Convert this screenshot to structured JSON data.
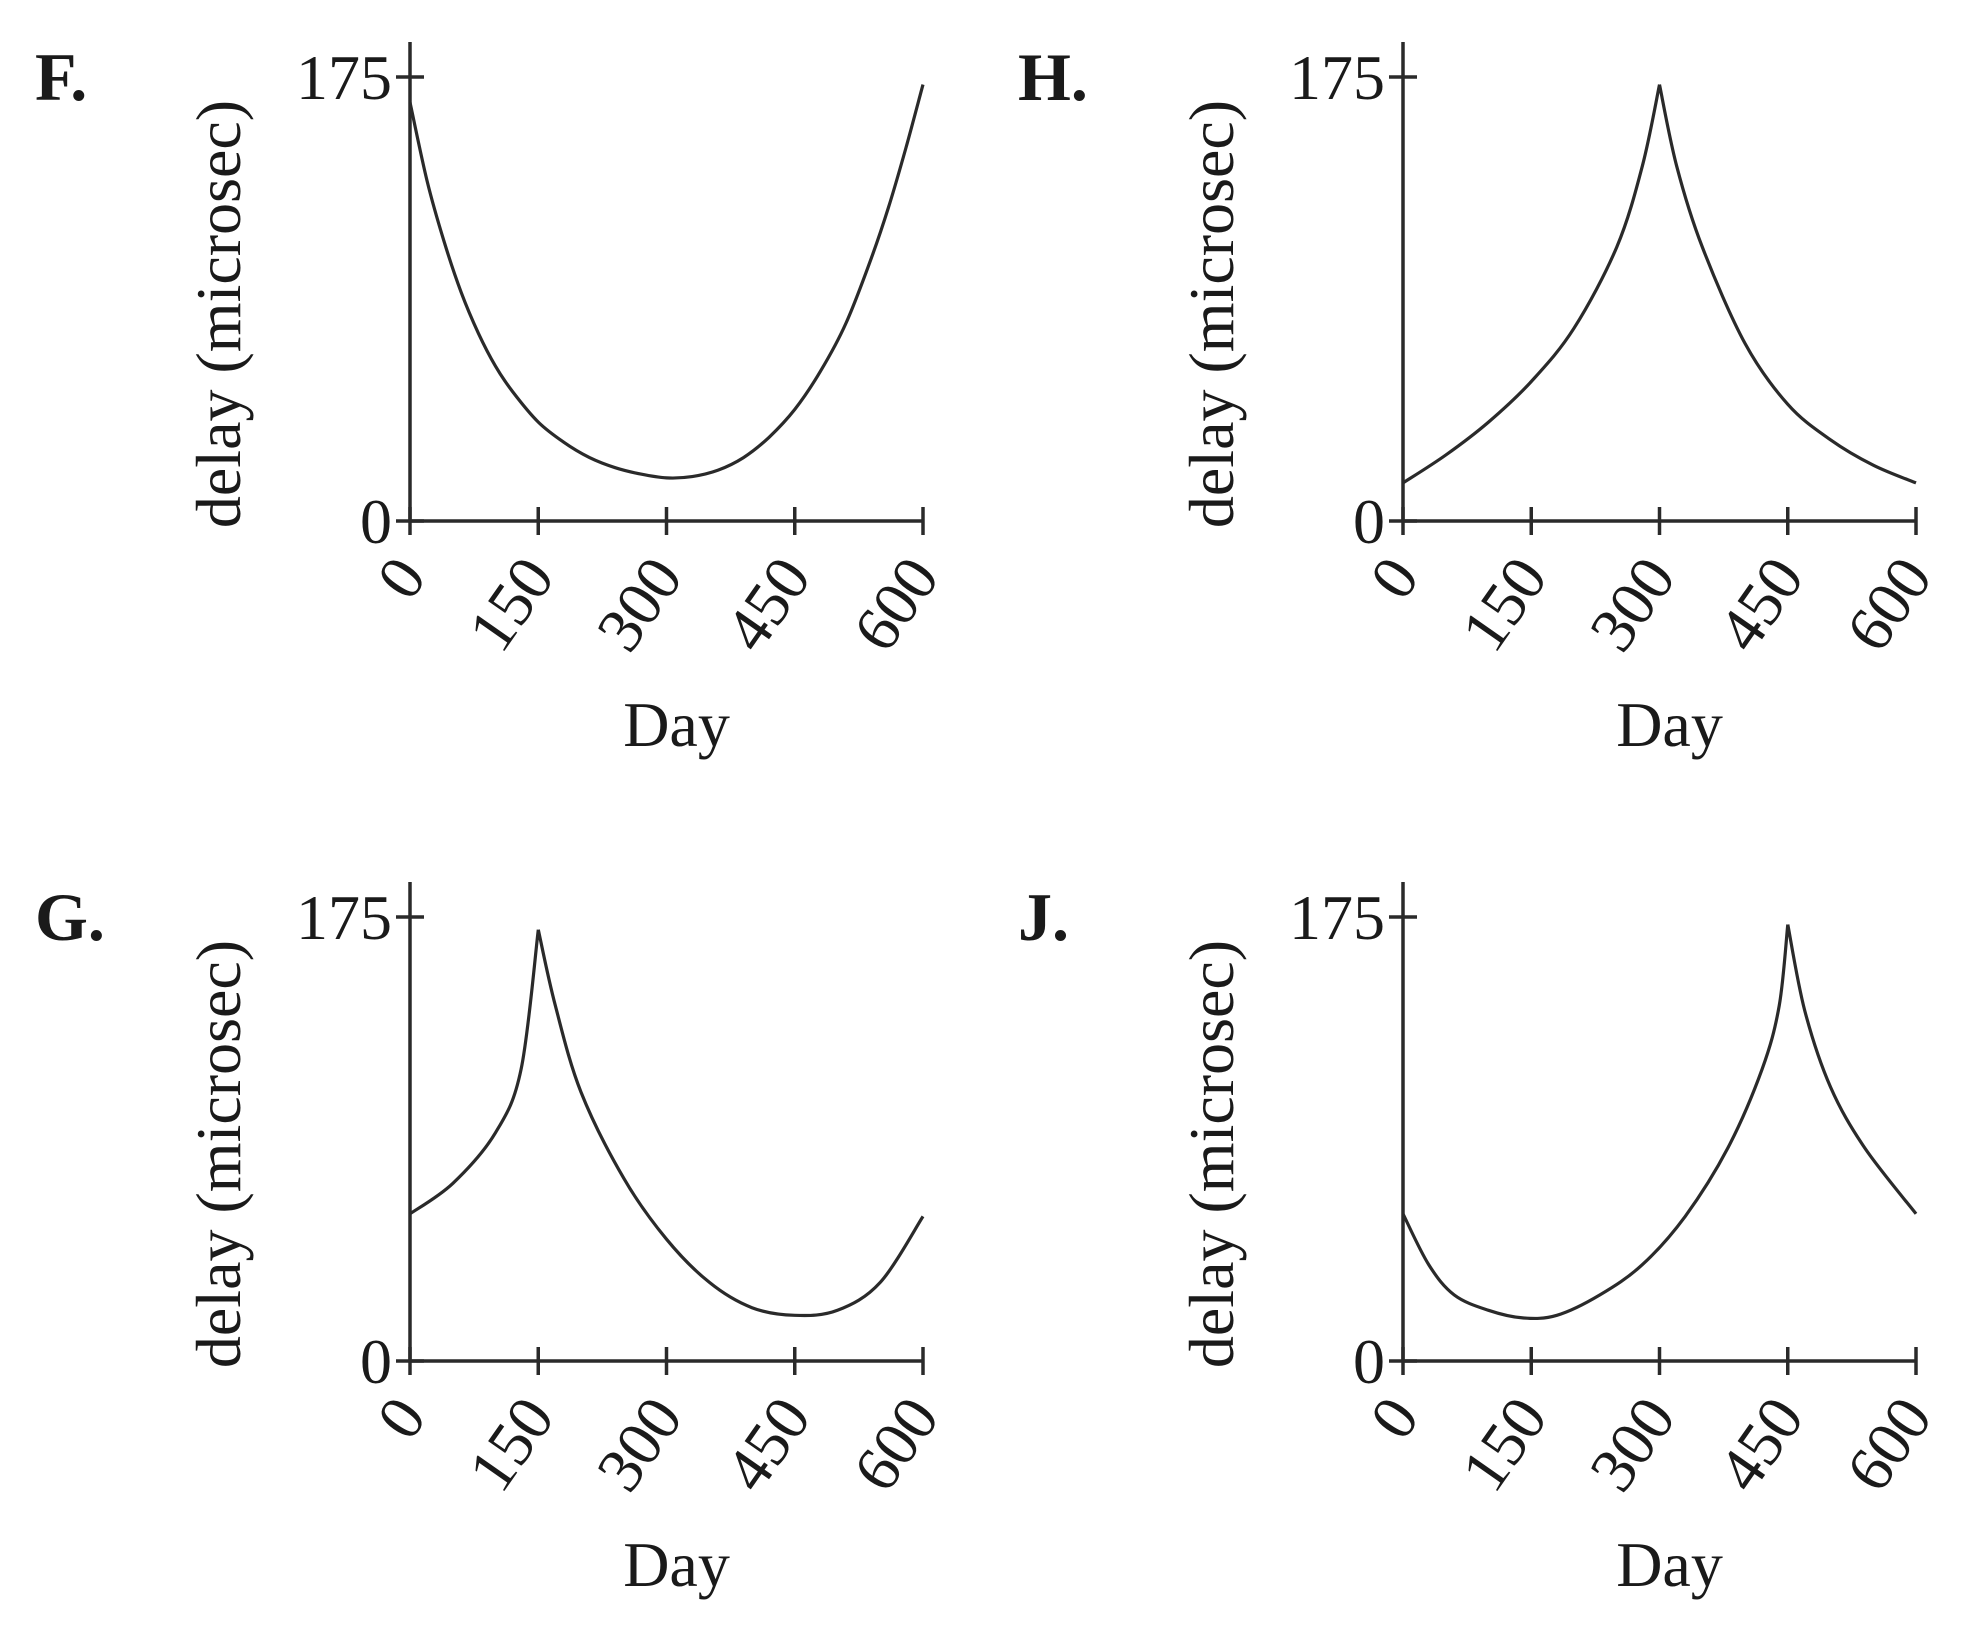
{
  "chart_data": [
    {
      "option": "F.",
      "type": "line",
      "xlabel": "Day",
      "ylabel": "delay (microsec)",
      "xticks": [
        "0",
        "150",
        "300",
        "450",
        "600"
      ],
      "yticks": [
        "0",
        "175"
      ],
      "xlim": [
        0,
        600
      ],
      "ylim": [
        0,
        175
      ],
      "x": [
        0,
        20,
        40,
        60,
        80,
        100,
        120,
        150,
        180,
        210,
        240,
        270,
        300,
        330,
        360,
        390,
        420,
        450,
        480,
        510,
        540,
        560,
        580,
        600
      ],
      "y": [
        165,
        134,
        110,
        90,
        74,
        61,
        51,
        39,
        31,
        25,
        21,
        18.5,
        17,
        17.5,
        20,
        25,
        33,
        44,
        59,
        78,
        104,
        124,
        147,
        172
      ]
    },
    {
      "option": "H.",
      "type": "line",
      "xlabel": "Day",
      "ylabel": "delay (microsec)",
      "xticks": [
        "0",
        "150",
        "300",
        "450",
        "600"
      ],
      "yticks": [
        "0",
        "175"
      ],
      "xlim": [
        0,
        600
      ],
      "ylim": [
        0,
        175
      ],
      "x": [
        0,
        50,
        100,
        150,
        200,
        250,
        280,
        300,
        320,
        350,
        400,
        450,
        500,
        550,
        600
      ],
      "y": [
        15,
        26,
        39,
        55,
        76,
        108,
        140,
        172,
        140,
        108,
        70,
        46,
        32,
        22,
        15
      ]
    },
    {
      "option": "G.",
      "type": "line",
      "xlabel": "Day",
      "ylabel": "delay (microsec)",
      "xticks": [
        "0",
        "150",
        "300",
        "450",
        "600"
      ],
      "yticks": [
        "0",
        "175"
      ],
      "xlim": [
        0,
        600
      ],
      "ylim": [
        0,
        175
      ],
      "x": [
        0,
        50,
        100,
        130,
        150,
        170,
        200,
        250,
        300,
        350,
        400,
        450,
        500,
        550,
        600
      ],
      "y": [
        58,
        70,
        90,
        115,
        170,
        140,
        106,
        72,
        48,
        31,
        21,
        18,
        20,
        31,
        57
      ]
    },
    {
      "option": "J.",
      "type": "line",
      "xlabel": "Day",
      "ylabel": "delay (microsec)",
      "xticks": [
        "0",
        "150",
        "300",
        "450",
        "600"
      ],
      "yticks": [
        "0",
        "175"
      ],
      "xlim": [
        0,
        600
      ],
      "ylim": [
        0,
        175
      ],
      "x": [
        0,
        30,
        60,
        100,
        140,
        180,
        230,
        280,
        330,
        380,
        420,
        440,
        450,
        470,
        500,
        540,
        600
      ],
      "y": [
        58,
        38,
        26,
        20,
        17,
        18,
        26,
        38,
        57,
        84,
        115,
        140,
        172,
        138,
        108,
        84,
        58
      ]
    }
  ]
}
